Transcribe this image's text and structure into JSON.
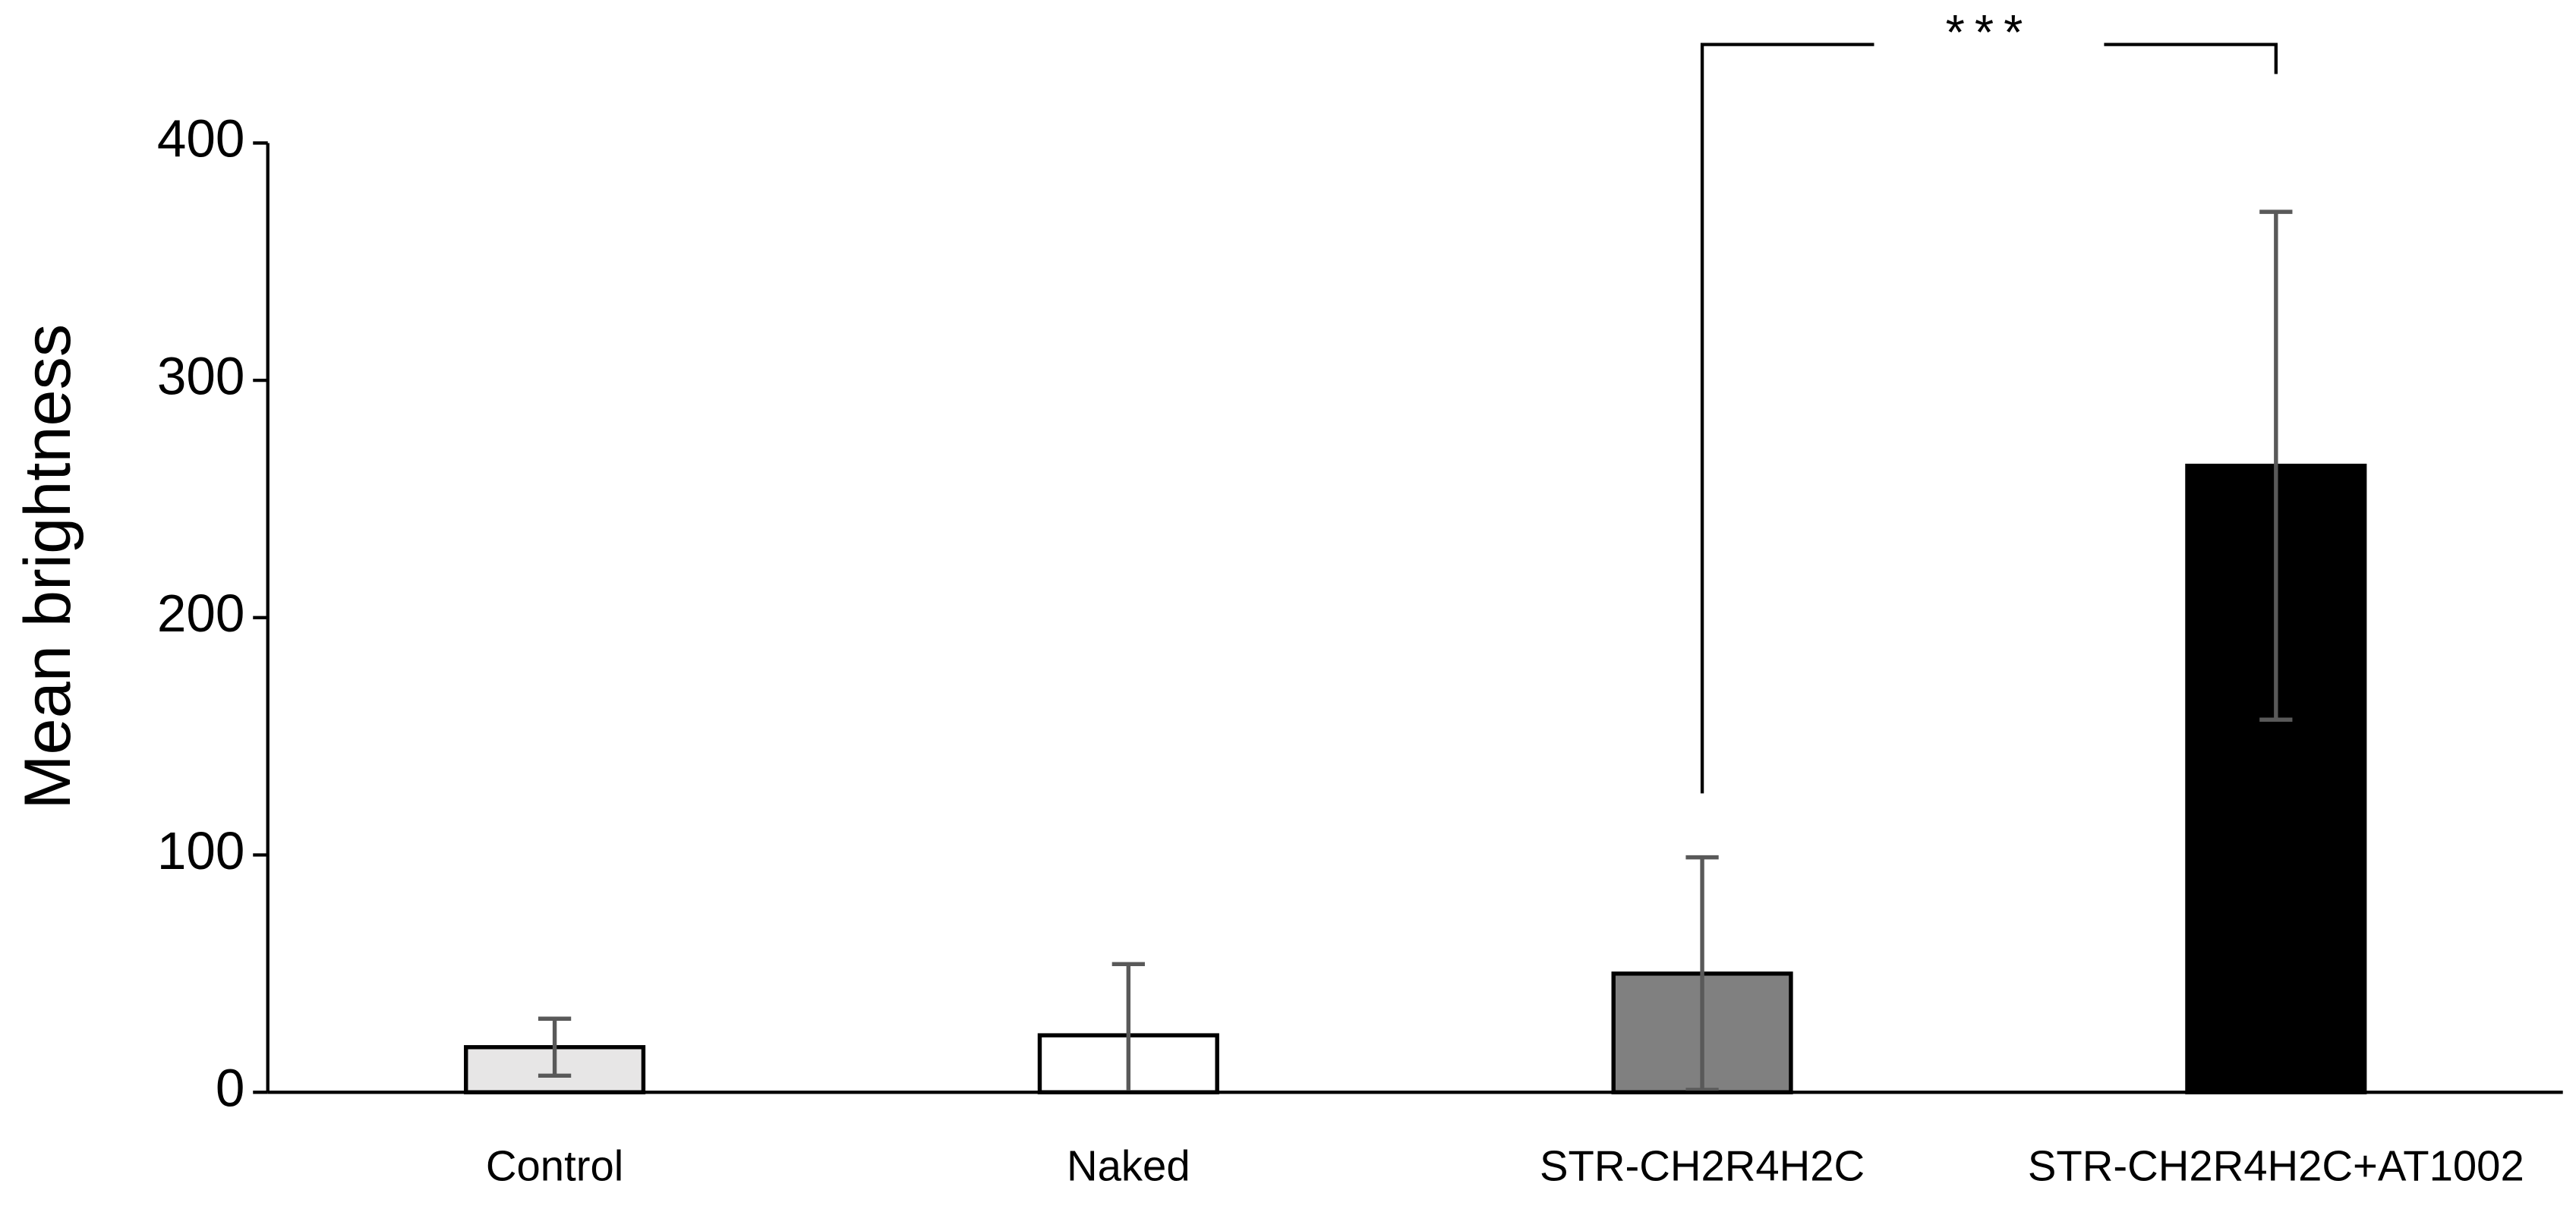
{
  "chart_data": {
    "type": "bar",
    "y_label": "Mean brightness",
    "categories": [
      "Control",
      "Naked",
      "STR-CH2R4H2C",
      "STR-CH2R4H2C+AT1002"
    ],
    "values": [
      19,
      24,
      50,
      264
    ],
    "errors": [
      12,
      30,
      49,
      107
    ],
    "colors": [
      "#e7e6e6",
      "#ffffff",
      "#808080",
      "#000000"
    ],
    "error_color": "#595959",
    "ylim": [
      0,
      400
    ],
    "yticks": [
      0,
      100,
      200,
      300,
      400
    ],
    "annotation": "***"
  }
}
